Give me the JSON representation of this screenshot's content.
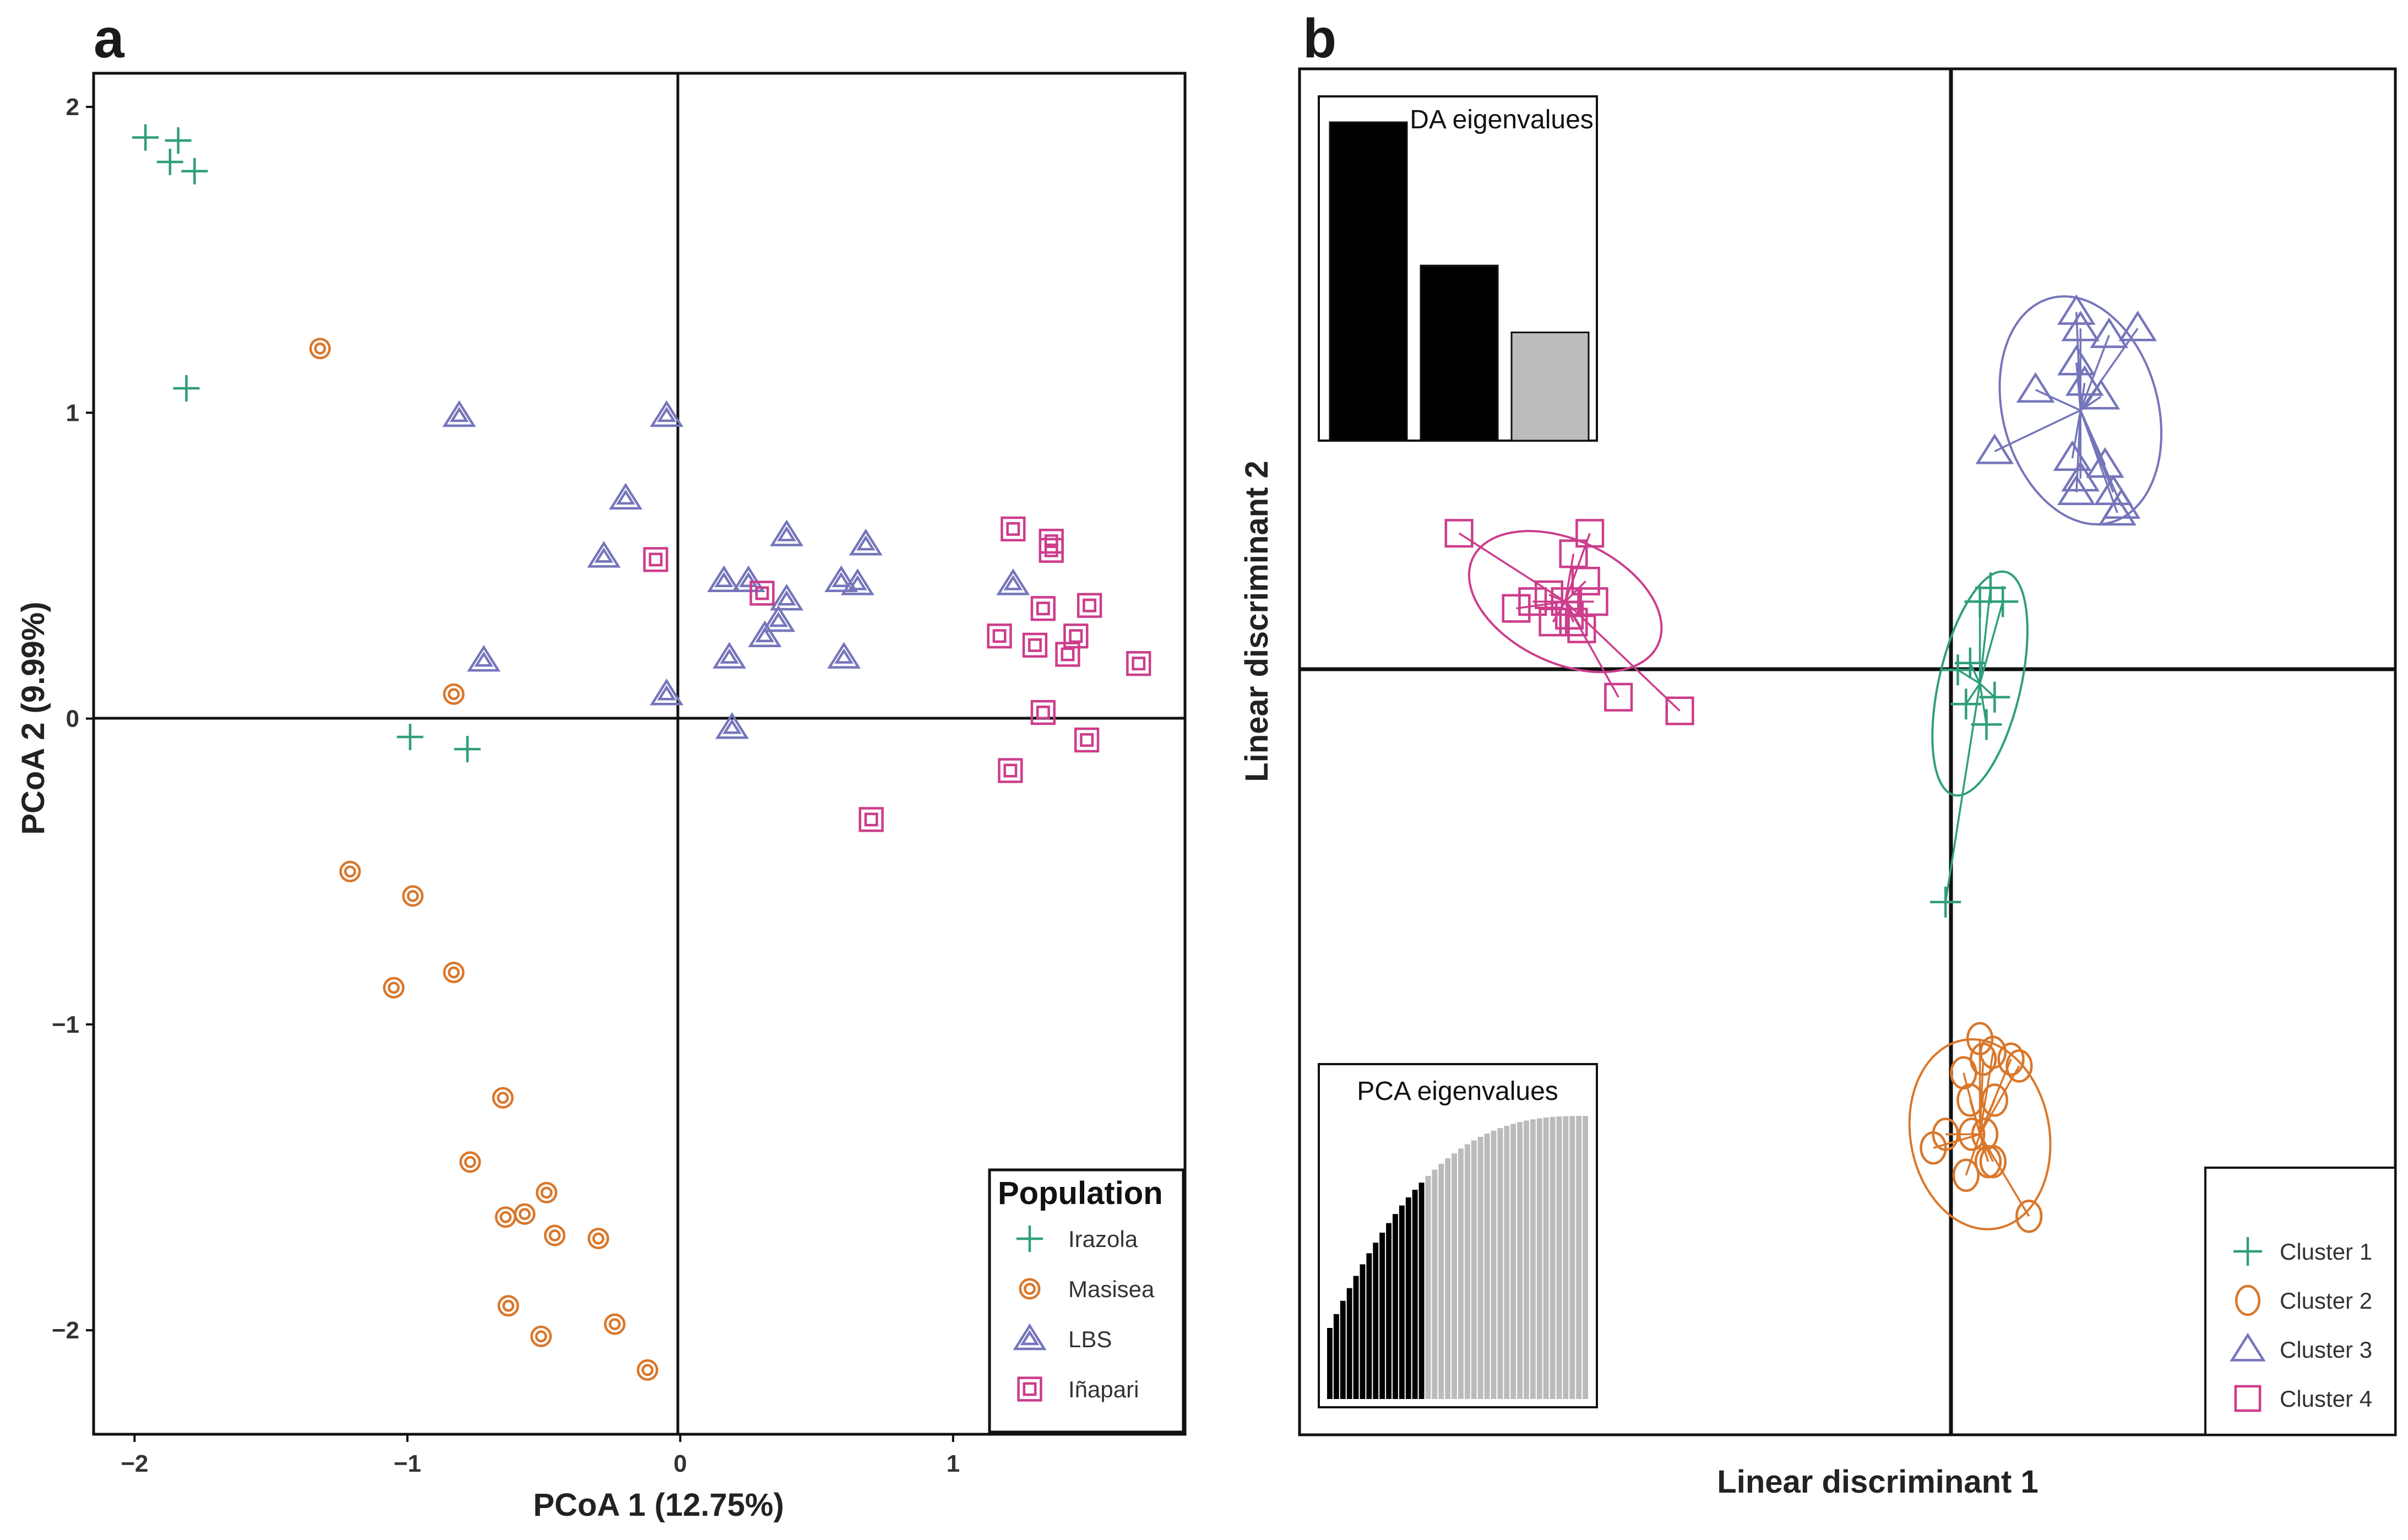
{
  "chart_data": [
    {
      "panel": "a",
      "type": "scatter",
      "xlabel": "PCoA 1 (12.75%)",
      "ylabel": "PCoA 2 (9.99%)",
      "xlim": [
        -2.15,
        1.85
      ],
      "ylim": [
        -2.34,
        2.11
      ],
      "xticks": [
        -2,
        -1,
        0,
        1
      ],
      "xtick_labels": [
        "−2",
        "−1",
        "0",
        "1"
      ],
      "yticks": [
        -2,
        -1,
        0,
        1,
        2
      ],
      "ytick_labels": [
        "−2",
        "−1",
        "0",
        "1",
        "2"
      ],
      "reference_lines": {
        "x": 0,
        "y": 0
      },
      "legend": {
        "title": "Population",
        "position": "bottom-right"
      },
      "series": [
        {
          "name": "Irazola",
          "marker": "plus",
          "color": "#2f9e7c",
          "points": [
            [
              -1.96,
              1.9
            ],
            [
              -1.84,
              1.89
            ],
            [
              -1.87,
              1.82
            ],
            [
              -1.78,
              1.79
            ],
            [
              -1.81,
              1.08
            ],
            [
              -0.99,
              -0.06
            ],
            [
              -0.78,
              -0.1
            ]
          ]
        },
        {
          "name": "Masisea",
          "marker": "double-circle",
          "color": "#d9772b",
          "points": [
            [
              -1.32,
              1.21
            ],
            [
              -0.83,
              0.08
            ],
            [
              -1.21,
              -0.5
            ],
            [
              -0.98,
              -0.58
            ],
            [
              -1.05,
              -0.88
            ],
            [
              -0.83,
              -0.83
            ],
            [
              -0.65,
              -1.24
            ],
            [
              -0.77,
              -1.45
            ],
            [
              -0.49,
              -1.55
            ],
            [
              -0.57,
              -1.62
            ],
            [
              -0.64,
              -1.63
            ],
            [
              -0.46,
              -1.69
            ],
            [
              -0.3,
              -1.7
            ],
            [
              -0.63,
              -1.92
            ],
            [
              -0.24,
              -1.98
            ],
            [
              -0.51,
              -2.02
            ],
            [
              -0.12,
              -2.13
            ]
          ]
        },
        {
          "name": "LBS",
          "marker": "double-triangle",
          "color": "#7575bb",
          "points": [
            [
              -0.81,
              0.99
            ],
            [
              -0.05,
              0.99
            ],
            [
              -0.2,
              0.72
            ],
            [
              -0.28,
              0.53
            ],
            [
              -0.72,
              0.19
            ],
            [
              -0.05,
              0.08
            ],
            [
              0.16,
              0.45
            ],
            [
              0.25,
              0.45
            ],
            [
              0.39,
              0.6
            ],
            [
              0.39,
              0.39
            ],
            [
              0.36,
              0.32
            ],
            [
              0.31,
              0.27
            ],
            [
              0.18,
              0.2
            ],
            [
              0.59,
              0.45
            ],
            [
              0.65,
              0.44
            ],
            [
              0.68,
              0.57
            ],
            [
              0.6,
              0.2
            ],
            [
              1.22,
              0.44
            ],
            [
              0.19,
              -0.03
            ]
          ]
        },
        {
          "name": "Iñapari",
          "marker": "double-square",
          "color": "#cc3d8c",
          "points": [
            [
              -0.09,
              0.52
            ],
            [
              0.3,
              0.41
            ],
            [
              1.22,
              0.62
            ],
            [
              1.36,
              0.58
            ],
            [
              1.36,
              0.55
            ],
            [
              1.33,
              0.36
            ],
            [
              1.5,
              0.37
            ],
            [
              1.17,
              0.27
            ],
            [
              1.3,
              0.24
            ],
            [
              1.45,
              0.27
            ],
            [
              1.42,
              0.21
            ],
            [
              1.68,
              0.18
            ],
            [
              1.33,
              0.02
            ],
            [
              1.49,
              -0.07
            ],
            [
              1.21,
              -0.17
            ],
            [
              0.7,
              -0.33
            ]
          ]
        }
      ]
    },
    {
      "panel": "b",
      "type": "scatter",
      "xlabel": "Linear discriminant 1",
      "ylabel": "Linear discriminant 2",
      "xlim": [
        -7.6,
        5.8
      ],
      "ylim": [
        -5.5,
        4.5
      ],
      "reference_lines": {
        "x": 0,
        "y": 0
      },
      "legend": {
        "title": "",
        "position": "bottom-right"
      },
      "series": [
        {
          "name": "Cluster 1",
          "marker": "plus",
          "color": "#2f9e7c",
          "centroid": [
            0.72,
            0.0
          ],
          "ellipse": {
            "rx": 1.4,
            "ry": 0.3,
            "angle_deg": -77
          },
          "points": [
            [
              0.72,
              0.6
            ],
            [
              0.85,
              0.7
            ],
            [
              1.0,
              0.6
            ],
            [
              0.45,
              0.1
            ],
            [
              0.6,
              0.15
            ],
            [
              0.9,
              -0.1
            ],
            [
              0.55,
              -0.15
            ],
            [
              0.8,
              -0.3
            ],
            [
              0.3,
              -1.6
            ]
          ]
        },
        {
          "name": "Cluster 2",
          "marker": "circle",
          "color": "#d9772b",
          "centroid": [
            0.72,
            -3.3
          ],
          "ellipse": {
            "rx": 0.85,
            "ry": 0.7,
            "angle_deg": -10
          },
          "points": [
            [
              0.72,
              -2.6
            ],
            [
              0.76,
              -2.75
            ],
            [
              0.52,
              -2.85
            ],
            [
              0.88,
              -2.7
            ],
            [
              1.1,
              -2.75
            ],
            [
              1.2,
              -2.8
            ],
            [
              0.6,
              -3.05
            ],
            [
              0.9,
              -3.05
            ],
            [
              0.3,
              -3.3
            ],
            [
              0.15,
              -3.4
            ],
            [
              0.62,
              -3.3
            ],
            [
              0.78,
              -3.3
            ],
            [
              0.82,
              -3.5
            ],
            [
              0.88,
              -3.5
            ],
            [
              0.55,
              -3.6
            ],
            [
              1.32,
              -3.9
            ]
          ]
        },
        {
          "name": "Cluster 3",
          "marker": "triangle",
          "color": "#7575bb",
          "centroid": [
            1.95,
            2.0
          ],
          "ellipse": {
            "rx": 0.95,
            "ry": 0.85,
            "angle_deg": -15
          },
          "points": [
            [
              1.9,
              2.72
            ],
            [
              1.95,
              2.6
            ],
            [
              2.3,
              2.55
            ],
            [
              2.65,
              2.6
            ],
            [
              1.9,
              2.35
            ],
            [
              2.0,
              2.2
            ],
            [
              2.2,
              2.1
            ],
            [
              1.4,
              2.15
            ],
            [
              0.9,
              1.7
            ],
            [
              1.85,
              1.65
            ],
            [
              1.95,
              1.5
            ],
            [
              2.25,
              1.6
            ],
            [
              1.9,
              1.4
            ],
            [
              2.35,
              1.4
            ],
            [
              2.45,
              1.3
            ],
            [
              2.4,
              1.25
            ]
          ]
        },
        {
          "name": "Cluster 4",
          "marker": "square",
          "color": "#cc3d8c",
          "centroid": [
            -4.35,
            0.6
          ],
          "ellipse": {
            "rx": 1.25,
            "ry": 0.45,
            "angle_deg": 25
          },
          "points": [
            [
              -5.65,
              1.1
            ],
            [
              -4.05,
              1.1
            ],
            [
              -4.25,
              0.95
            ],
            [
              -4.1,
              0.75
            ],
            [
              -4.55,
              0.65
            ],
            [
              -4.35,
              0.6
            ],
            [
              -4.75,
              0.6
            ],
            [
              -4.95,
              0.55
            ],
            [
              -4.3,
              0.5
            ],
            [
              -4.25,
              0.45
            ],
            [
              -4.5,
              0.45
            ],
            [
              -4.0,
              0.6
            ],
            [
              -4.15,
              0.4
            ],
            [
              -3.7,
              -0.1
            ],
            [
              -2.95,
              -0.2
            ]
          ]
        }
      ],
      "inset_da": {
        "title": "DA eigenvalues",
        "values": [
          100,
          55,
          34
        ],
        "colors": [
          "#000000",
          "#000000",
          "#bbbbbb"
        ]
      },
      "inset_pca": {
        "title": "PCA eigenvalues",
        "n_retained": 15,
        "n_total": 40
      }
    }
  ]
}
